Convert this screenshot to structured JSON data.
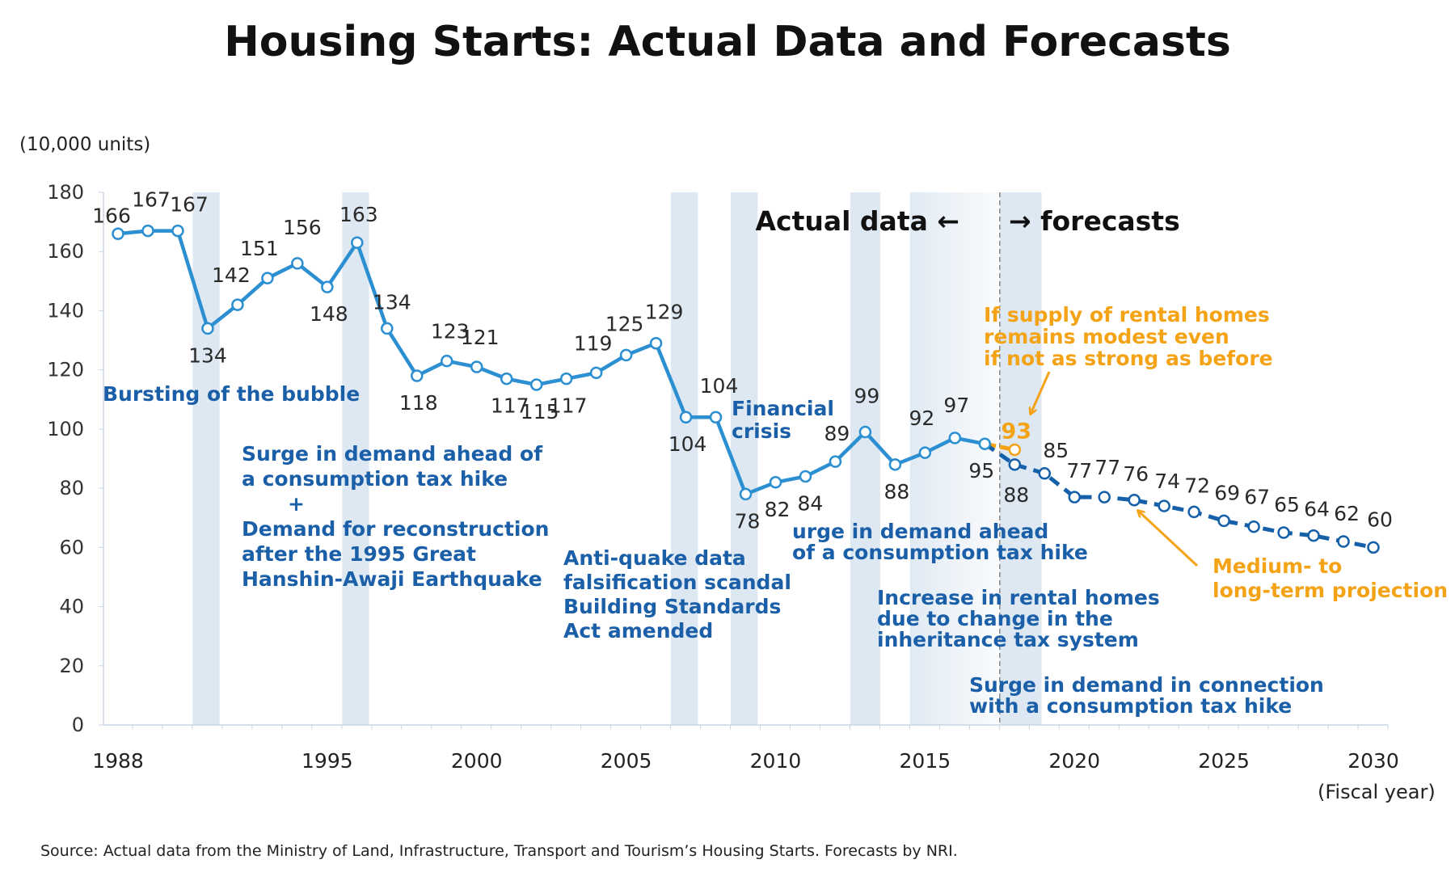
{
  "chart_data": {
    "type": "line",
    "title": "Housing Starts: Actual Data and Forecasts",
    "ylabel": "(10,000 units)",
    "xlabel": "(Fiscal year)",
    "ylim": [
      0,
      180
    ],
    "xlim": [
      1988,
      2030
    ],
    "yticks": [
      "0",
      "20",
      "40",
      "60",
      "80",
      "100",
      "120",
      "140",
      "160",
      "180"
    ],
    "xticks": [
      "1988",
      "1995",
      "2000",
      "2005",
      "2010",
      "2015",
      "2020",
      "2025",
      "2030"
    ],
    "grid": false,
    "series": [
      {
        "kind": "actual",
        "color": "#2b8fd1",
        "x": [
          1988,
          1989,
          1990,
          1991,
          1992,
          1993,
          1994,
          1995,
          1996,
          1997,
          1998,
          1999,
          2000,
          2001,
          2002,
          2003,
          2004,
          2005,
          2006,
          2007,
          2008,
          2009,
          2010,
          2011,
          2012,
          2013,
          2014,
          2015,
          2016,
          2017
        ],
        "values": [
          166,
          167,
          167,
          134,
          142,
          151,
          156,
          148,
          163,
          134,
          118,
          123,
          121,
          117,
          115,
          117,
          119,
          125,
          129,
          104,
          104,
          78,
          82,
          84,
          89,
          99,
          88,
          92,
          97,
          95
        ]
      },
      {
        "kind": "forecast-medium-long-term",
        "color": "#1560a8",
        "x": [
          2017,
          2018,
          2019,
          2020,
          2021,
          2022,
          2023,
          2024,
          2025,
          2026,
          2027,
          2028,
          2029,
          2030
        ],
        "values": [
          95,
          88,
          85,
          77,
          77,
          76,
          74,
          72,
          69,
          67,
          65,
          64,
          62,
          60
        ]
      },
      {
        "kind": "forecast-rental-modest",
        "color": "#f5a316",
        "x": [
          2017,
          2018
        ],
        "values": [
          95,
          93
        ]
      }
    ],
    "shaded_periods": [
      [
        1990.5,
        1991.4
      ],
      [
        1995.5,
        1996.4
      ],
      [
        2006.5,
        2007.4
      ],
      [
        2008.5,
        2009.4
      ],
      [
        2012.5,
        2013.5
      ],
      [
        2014.5,
        2017.5
      ],
      [
        2017.5,
        2018.9
      ]
    ],
    "divider_year": 2017.5,
    "annotations": {
      "actual_label": "Actual data ←",
      "forecast_label": "→ forecasts",
      "bubble": [
        "Bursting of the bubble"
      ],
      "surge_1997": [
        "Surge in demand ahead of",
        "a consumption tax hike",
        "+",
        "Demand for reconstruction",
        "after the 1995  Great",
        "Hanshin-Awaji Earthquake"
      ],
      "financial": [
        "Financial",
        "crisis"
      ],
      "antiquake": [
        "Anti-quake data",
        "falsification scandal",
        "Building Standards",
        "Act amended"
      ],
      "surge_2014": [
        "urge in demand ahead",
        "of a consumption tax hike"
      ],
      "rental": [
        "Increase in rental homes",
        "due to change in the",
        "inheritance tax system"
      ],
      "surge_2019": [
        "Surge in demand in connection",
        "with a consumption tax hike"
      ],
      "orange_rental": [
        "If supply of rental homes",
        "remains modest even",
        "if not as strong as before"
      ],
      "orange_medium": [
        "Medium- to",
        "long-term projection"
      ]
    }
  },
  "source": "Source: Actual data from the Ministry of Land, Infrastructure, Transport and Tourism’s Housing Starts. Forecasts by NRI."
}
